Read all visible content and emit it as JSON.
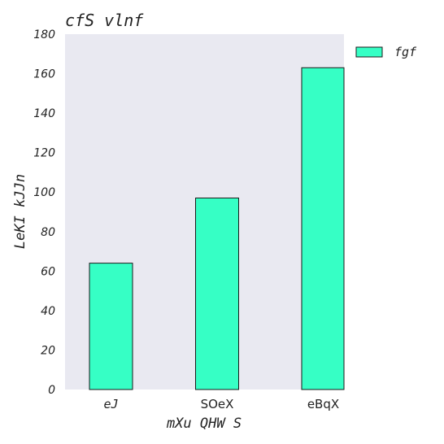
{
  "chart_data": {
    "type": "bar",
    "title": "cfS vlnf",
    "xlabel": "mXu QHW S",
    "ylabel": "LeKI kJJn",
    "categories": [
      "eJ",
      "SOeX",
      "eBqX"
    ],
    "series": [
      {
        "name": "fgf",
        "values": [
          64,
          97,
          163
        ]
      }
    ],
    "ylim": [
      0,
      180
    ],
    "yticks": [
      "0",
      "20",
      "40",
      "60",
      "80",
      "100",
      "120",
      "140",
      "160",
      "180"
    ],
    "grid": false,
    "legend": "top-right",
    "colors": {
      "plot_background": "#e9e9f1",
      "bar_fill": "#36ffc5",
      "bar_edge": "#1a1a1a",
      "text": "#222222"
    }
  }
}
